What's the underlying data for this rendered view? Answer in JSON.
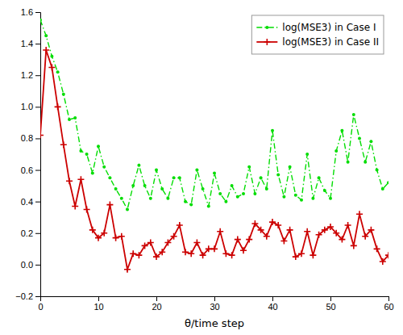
{
  "chart_data": {
    "type": "line",
    "xlabel": "θ/time step",
    "x": [
      0,
      1,
      2,
      3,
      4,
      5,
      6,
      7,
      8,
      9,
      10,
      11,
      12,
      13,
      14,
      15,
      16,
      17,
      18,
      19,
      20,
      21,
      22,
      23,
      24,
      25,
      26,
      27,
      28,
      29,
      30,
      31,
      32,
      33,
      34,
      35,
      36,
      37,
      38,
      39,
      40,
      41,
      42,
      43,
      44,
      45,
      46,
      47,
      48,
      49,
      50,
      51,
      52,
      53,
      54,
      55,
      56,
      57,
      58,
      59,
      60
    ],
    "series": [
      {
        "name": "log(MSE3) in Case I",
        "color": "#00dd00",
        "marker": "point",
        "line_style": "dashdot",
        "values": [
          1.55,
          1.45,
          1.32,
          1.22,
          1.08,
          0.92,
          0.93,
          0.72,
          0.7,
          0.58,
          0.75,
          0.62,
          0.55,
          0.48,
          0.42,
          0.35,
          0.5,
          0.63,
          0.5,
          0.42,
          0.6,
          0.48,
          0.42,
          0.55,
          0.55,
          0.4,
          0.38,
          0.6,
          0.48,
          0.37,
          0.58,
          0.45,
          0.4,
          0.5,
          0.43,
          0.45,
          0.62,
          0.45,
          0.55,
          0.48,
          0.85,
          0.57,
          0.43,
          0.62,
          0.44,
          0.41,
          0.7,
          0.42,
          0.55,
          0.47,
          0.42,
          0.72,
          0.85,
          0.65,
          0.95,
          0.8,
          0.65,
          0.78,
          0.6,
          0.48,
          0.52
        ]
      },
      {
        "name": "log(MSE3) in Case II",
        "color": "#cc0000",
        "marker": "plus",
        "line_style": "solid",
        "values": [
          0.82,
          1.36,
          1.25,
          1.0,
          0.76,
          0.53,
          0.37,
          0.54,
          0.35,
          0.22,
          0.17,
          0.2,
          0.38,
          0.17,
          0.18,
          -0.03,
          0.07,
          0.06,
          0.12,
          0.14,
          0.05,
          0.08,
          0.14,
          0.18,
          0.25,
          0.08,
          0.07,
          0.14,
          0.06,
          0.1,
          0.1,
          0.21,
          0.07,
          0.06,
          0.16,
          0.09,
          0.16,
          0.26,
          0.22,
          0.18,
          0.27,
          0.25,
          0.15,
          0.22,
          0.05,
          0.07,
          0.21,
          0.06,
          0.19,
          0.22,
          0.24,
          0.2,
          0.16,
          0.25,
          0.12,
          0.32,
          0.18,
          0.22,
          0.1,
          0.02,
          0.06
        ]
      }
    ],
    "xlim": [
      0,
      60
    ],
    "ylim": [
      -0.2,
      1.6
    ],
    "xticks": [
      0,
      10,
      20,
      30,
      40,
      50,
      60
    ],
    "yticks": [
      {
        "value": -0.2,
        "label": "−0.2"
      },
      {
        "value": 0.0,
        "label": "0.0"
      },
      0.2,
      0.4,
      0.6,
      0.8,
      {
        "value": 1.0,
        "label": "1.0"
      },
      1.2,
      1.4,
      1.6
    ],
    "legend": "upper right"
  }
}
